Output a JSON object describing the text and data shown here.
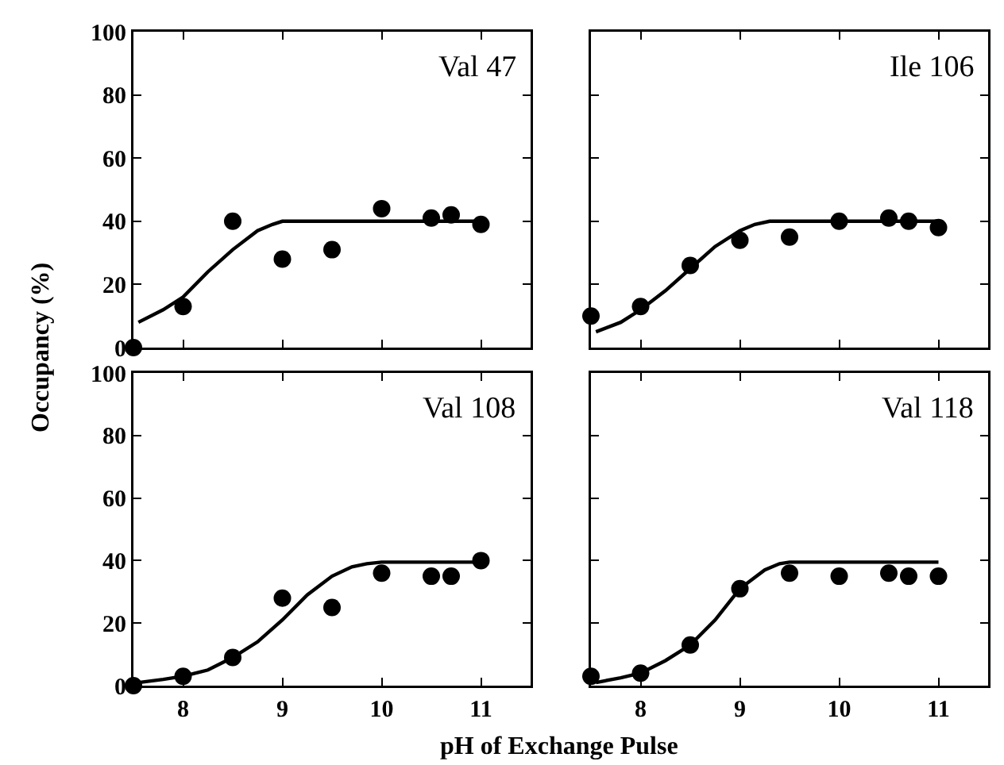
{
  "chart_data": [
    {
      "type": "scatter",
      "ylabel": "Occupancy (%)",
      "annotations": [
        "Val 47"
      ],
      "xlim": [
        7.5,
        11.5
      ],
      "ylim": [
        0,
        100
      ],
      "xticks": [
        8,
        9,
        10,
        11
      ],
      "yticks": [
        0,
        20,
        40,
        60,
        80,
        100
      ],
      "tick_labels": "y",
      "marker": "circle",
      "series": [
        {
          "type": "scatter",
          "color": "#000000",
          "x": [
            7.5,
            8,
            8.5,
            9,
            9.5,
            10,
            10.5,
            10.7,
            11
          ],
          "values": [
            0,
            13,
            40,
            28,
            31,
            44,
            41,
            42,
            39
          ]
        },
        {
          "type": "line",
          "marker": "none",
          "color": "#000000",
          "x": [
            7.55,
            7.8,
            8,
            8.25,
            8.5,
            8.75,
            8.9,
            9,
            9.25,
            9.5,
            10,
            10.5,
            11
          ],
          "values": [
            8,
            12,
            16,
            24,
            31,
            37,
            39,
            40,
            40,
            40,
            40,
            40,
            40
          ]
        }
      ]
    },
    {
      "type": "scatter",
      "annotations": [
        "Ile 106"
      ],
      "xlim": [
        7.5,
        11.5
      ],
      "ylim": [
        0,
        100
      ],
      "xticks": [
        8,
        9,
        10,
        11
      ],
      "yticks": [
        0,
        20,
        40,
        60,
        80,
        100
      ],
      "tick_labels": false,
      "marker": "circle",
      "series": [
        {
          "type": "scatter",
          "color": "#000000",
          "x": [
            7.5,
            8,
            8.5,
            9,
            9.5,
            10,
            10.5,
            10.7,
            11
          ],
          "values": [
            10,
            13,
            26,
            34,
            35,
            40,
            41,
            40,
            38
          ]
        },
        {
          "type": "line",
          "marker": "none",
          "color": "#000000",
          "x": [
            7.55,
            7.8,
            8,
            8.25,
            8.5,
            8.75,
            9,
            9.15,
            9.3,
            9.5,
            10,
            10.5,
            11
          ],
          "values": [
            5,
            8,
            12,
            18,
            25,
            32,
            37,
            39,
            40,
            40,
            40,
            40,
            40
          ]
        }
      ]
    },
    {
      "type": "scatter",
      "xlabel": "pH of Exchange Pulse",
      "annotations": [
        "Val 108"
      ],
      "xlim": [
        7.5,
        11.5
      ],
      "ylim": [
        0,
        100
      ],
      "xticks": [
        8,
        9,
        10,
        11
      ],
      "yticks": [
        0,
        20,
        40,
        60,
        80,
        100
      ],
      "marker": "circle",
      "series": [
        {
          "type": "scatter",
          "color": "#000000",
          "x": [
            7.5,
            8,
            8.5,
            9,
            9.5,
            10,
            10.5,
            10.7,
            11
          ],
          "values": [
            0,
            3,
            9,
            28,
            25,
            36,
            35,
            35,
            40
          ]
        },
        {
          "type": "line",
          "marker": "none",
          "color": "#000000",
          "x": [
            7.55,
            7.8,
            8,
            8.25,
            8.5,
            8.75,
            9,
            9.25,
            9.5,
            9.7,
            9.85,
            10,
            10.5,
            11
          ],
          "values": [
            1,
            2,
            3,
            5,
            9,
            14,
            21,
            29,
            35,
            38,
            39,
            39.5,
            39.5,
            39.5
          ]
        }
      ]
    },
    {
      "type": "scatter",
      "annotations": [
        "Val 118"
      ],
      "xlim": [
        7.5,
        11.5
      ],
      "ylim": [
        0,
        100
      ],
      "xticks": [
        8,
        9,
        10,
        11
      ],
      "yticks": [
        0,
        20,
        40,
        60,
        80,
        100
      ],
      "tick_labels": "x",
      "marker": "circle",
      "series": [
        {
          "type": "scatter",
          "color": "#000000",
          "x": [
            7.5,
            8,
            8.5,
            9,
            9.5,
            10,
            10.5,
            10.7,
            11
          ],
          "values": [
            3,
            4,
            13,
            31,
            36,
            35,
            36,
            35,
            35
          ]
        },
        {
          "type": "line",
          "marker": "none",
          "color": "#000000",
          "x": [
            7.55,
            7.8,
            8,
            8.25,
            8.5,
            8.75,
            9,
            9.25,
            9.4,
            9.5,
            10,
            10.5,
            11
          ],
          "values": [
            1,
            2.5,
            4,
            8,
            13,
            21,
            31,
            37,
            39,
            39.5,
            39.5,
            39.5,
            39.5
          ]
        }
      ]
    }
  ]
}
